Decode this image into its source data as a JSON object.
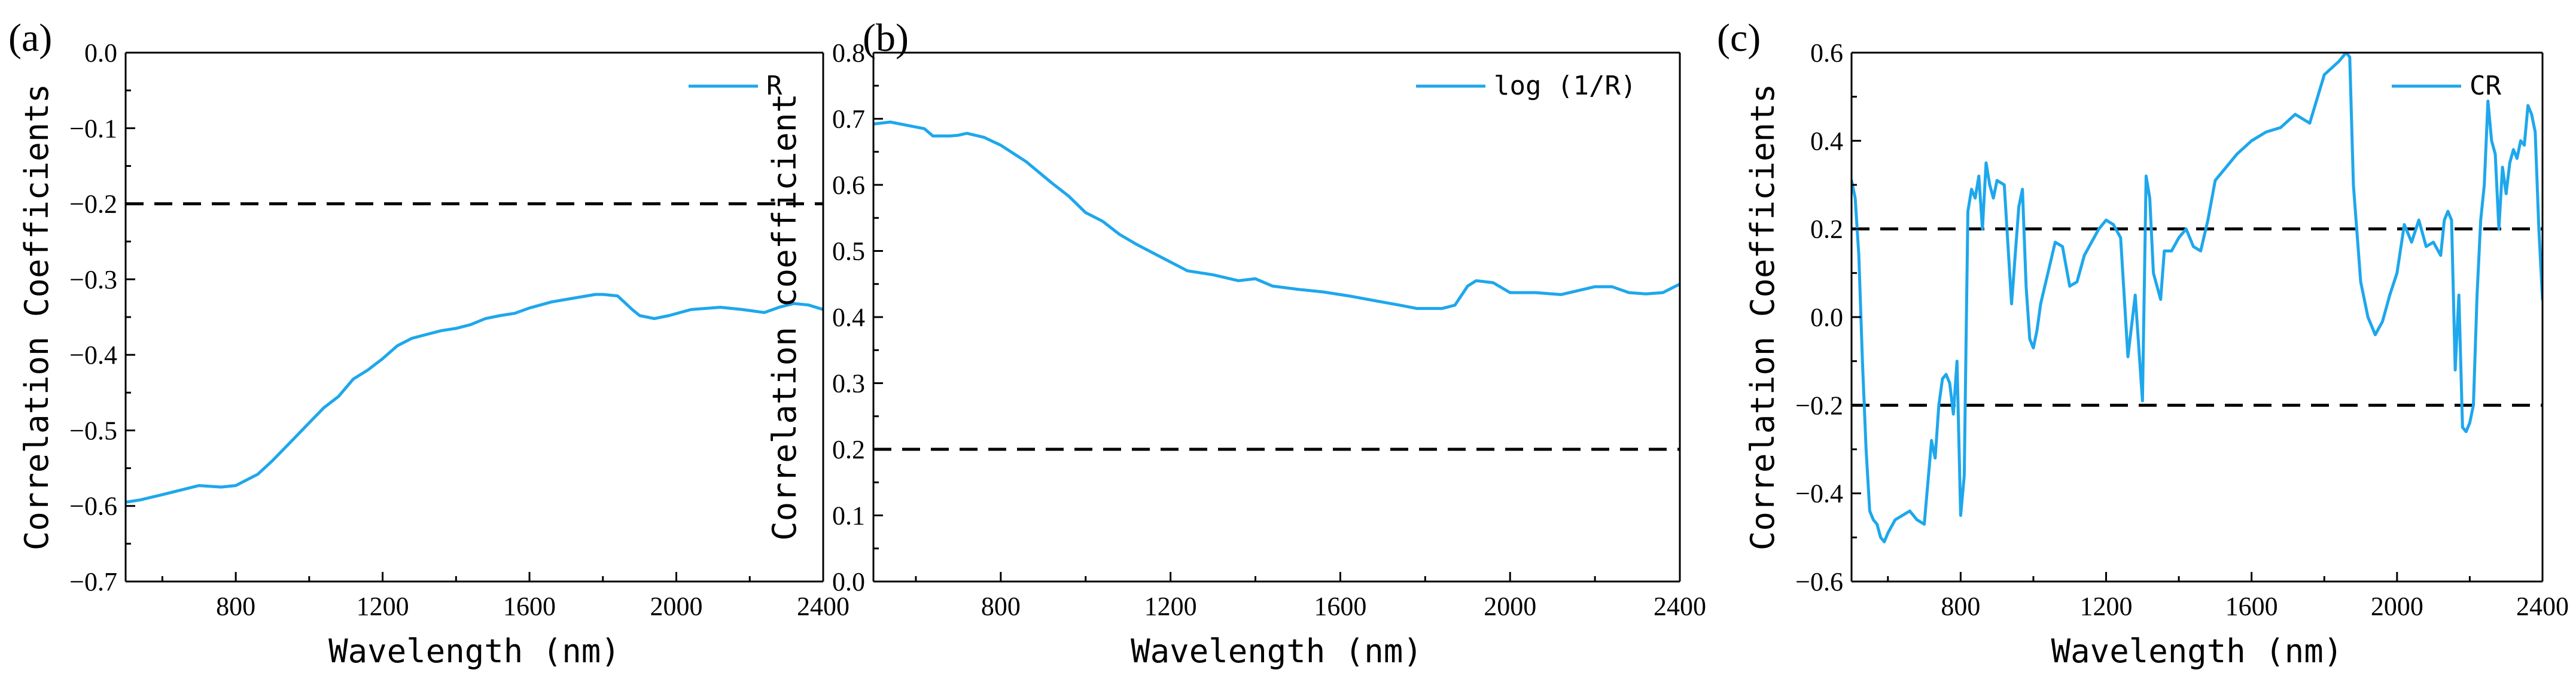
{
  "colors": {
    "series": "#1ea7ec",
    "axis": "#000000",
    "threshold": "#000000"
  },
  "chart_data": [
    {
      "id": "a",
      "type": "line",
      "panel_label": "(a)",
      "xlabel": "Wavelength (nm)",
      "ylabel": "Correlation Coefficients",
      "xlim": [
        500,
        2400
      ],
      "ylim": [
        -0.7,
        0.0
      ],
      "xticks": [
        800,
        1200,
        1600,
        2000,
        2400
      ],
      "yticks": [
        0.0,
        -0.1,
        -0.2,
        -0.3,
        -0.4,
        -0.5,
        -0.6,
        -0.7
      ],
      "ytick_labels": [
        "0.0",
        "−0.1",
        "−0.2",
        "−0.3",
        "−0.4",
        "−0.5",
        "−0.6",
        "−0.7"
      ],
      "thresholds": [
        -0.2
      ],
      "legend": {
        "label": "R",
        "position": "top-right"
      },
      "series": [
        {
          "name": "R",
          "x": [
            500,
            540,
            600,
            700,
            760,
            800,
            860,
            900,
            960,
            1000,
            1040,
            1080,
            1120,
            1160,
            1200,
            1240,
            1280,
            1320,
            1360,
            1400,
            1440,
            1480,
            1520,
            1560,
            1600,
            1660,
            1720,
            1780,
            1800,
            1840,
            1880,
            1900,
            1940,
            1980,
            2040,
            2120,
            2180,
            2240,
            2280,
            2320,
            2360,
            2400
          ],
          "y": [
            -0.595,
            -0.592,
            -0.585,
            -0.573,
            -0.575,
            -0.573,
            -0.558,
            -0.54,
            -0.51,
            -0.49,
            -0.47,
            -0.455,
            -0.432,
            -0.42,
            -0.405,
            -0.388,
            -0.378,
            -0.373,
            -0.368,
            -0.365,
            -0.36,
            -0.352,
            -0.348,
            -0.345,
            -0.338,
            -0.33,
            -0.325,
            -0.32,
            -0.32,
            -0.322,
            -0.34,
            -0.348,
            -0.352,
            -0.348,
            -0.34,
            -0.337,
            -0.34,
            -0.344,
            -0.337,
            -0.332,
            -0.334,
            -0.34
          ]
        }
      ]
    },
    {
      "id": "b",
      "type": "line",
      "panel_label": "(b)",
      "xlabel": "Wavelength (nm)",
      "ylabel": "Correlation coefficient",
      "xlim": [
        500,
        2400
      ],
      "ylim": [
        0.0,
        0.8
      ],
      "xticks": [
        800,
        1200,
        1600,
        2000,
        2400
      ],
      "yticks": [
        0.0,
        0.1,
        0.2,
        0.3,
        0.4,
        0.5,
        0.6,
        0.7,
        0.8
      ],
      "ytick_labels": [
        "0.0",
        "0.1",
        "0.2",
        "0.3",
        "0.4",
        "0.5",
        "0.6",
        "0.7",
        "0.8"
      ],
      "thresholds": [
        0.2
      ],
      "legend": {
        "label": "log (1/R)",
        "position": "top-right"
      },
      "series": [
        {
          "name": "log (1/R)",
          "x": [
            500,
            540,
            580,
            620,
            640,
            680,
            700,
            720,
            760,
            800,
            860,
            920,
            960,
            1000,
            1040,
            1080,
            1120,
            1180,
            1240,
            1300,
            1360,
            1400,
            1440,
            1500,
            1560,
            1620,
            1680,
            1740,
            1780,
            1840,
            1870,
            1900,
            1920,
            1960,
            2000,
            2060,
            2120,
            2160,
            2200,
            2240,
            2280,
            2320,
            2360,
            2400
          ],
          "y": [
            0.692,
            0.695,
            0.69,
            0.685,
            0.674,
            0.674,
            0.675,
            0.678,
            0.672,
            0.66,
            0.635,
            0.603,
            0.583,
            0.558,
            0.545,
            0.525,
            0.51,
            0.49,
            0.47,
            0.464,
            0.455,
            0.458,
            0.447,
            0.442,
            0.438,
            0.432,
            0.425,
            0.418,
            0.413,
            0.413,
            0.418,
            0.447,
            0.455,
            0.452,
            0.437,
            0.437,
            0.434,
            0.44,
            0.446,
            0.446,
            0.437,
            0.435,
            0.437,
            0.45
          ]
        }
      ]
    },
    {
      "id": "c",
      "type": "line",
      "panel_label": "(c)",
      "xlabel": "Wavelength (nm)",
      "ylabel": "Correlation Coefficients",
      "xlim": [
        500,
        2400
      ],
      "ylim": [
        -0.6,
        0.6
      ],
      "xticks": [
        800,
        1200,
        1600,
        2000,
        2400
      ],
      "yticks": [
        0.6,
        0.4,
        0.2,
        0.0,
        -0.2,
        -0.4,
        -0.6
      ],
      "ytick_labels": [
        "0.6",
        "0.4",
        "0.2",
        "0.0",
        "−0.2",
        "−0.4",
        "−0.6"
      ],
      "thresholds": [
        0.2,
        -0.2
      ],
      "legend": {
        "label": "CR",
        "position": "top-right"
      },
      "series": [
        {
          "name": "CR",
          "x": [
            500,
            510,
            520,
            530,
            540,
            550,
            560,
            570,
            580,
            590,
            600,
            620,
            640,
            660,
            680,
            700,
            720,
            730,
            740,
            750,
            760,
            770,
            780,
            790,
            800,
            810,
            815,
            820,
            830,
            840,
            850,
            860,
            870,
            880,
            890,
            900,
            920,
            940,
            960,
            970,
            980,
            990,
            1000,
            1010,
            1020,
            1040,
            1060,
            1080,
            1100,
            1120,
            1140,
            1160,
            1180,
            1200,
            1220,
            1240,
            1260,
            1280,
            1300,
            1310,
            1320,
            1330,
            1340,
            1350,
            1360,
            1380,
            1400,
            1420,
            1440,
            1460,
            1480,
            1500,
            1520,
            1540,
            1560,
            1600,
            1640,
            1680,
            1720,
            1760,
            1800,
            1840,
            1860,
            1870,
            1880,
            1900,
            1920,
            1940,
            1960,
            1980,
            2000,
            2020,
            2040,
            2060,
            2080,
            2100,
            2120,
            2130,
            2140,
            2150,
            2160,
            2170,
            2180,
            2190,
            2200,
            2210,
            2220,
            2230,
            2240,
            2250,
            2260,
            2270,
            2280,
            2290,
            2300,
            2310,
            2320,
            2330,
            2340,
            2350,
            2360,
            2370,
            2380,
            2390,
            2400
          ],
          "y": [
            0.31,
            0.27,
            0.14,
            -0.1,
            -0.3,
            -0.44,
            -0.46,
            -0.47,
            -0.5,
            -0.51,
            -0.49,
            -0.46,
            -0.45,
            -0.44,
            -0.46,
            -0.47,
            -0.28,
            -0.32,
            -0.2,
            -0.14,
            -0.13,
            -0.15,
            -0.22,
            -0.1,
            -0.45,
            -0.36,
            -0.05,
            0.24,
            0.29,
            0.27,
            0.32,
            0.2,
            0.35,
            0.3,
            0.27,
            0.31,
            0.3,
            0.03,
            0.25,
            0.29,
            0.07,
            -0.05,
            -0.07,
            -0.03,
            0.03,
            0.1,
            0.17,
            0.16,
            0.07,
            0.08,
            0.14,
            0.17,
            0.2,
            0.22,
            0.21,
            0.18,
            -0.09,
            0.05,
            -0.19,
            0.32,
            0.27,
            0.1,
            0.07,
            0.04,
            0.15,
            0.15,
            0.18,
            0.2,
            0.16,
            0.15,
            0.22,
            0.31,
            0.33,
            0.35,
            0.37,
            0.4,
            0.42,
            0.43,
            0.46,
            0.44,
            0.55,
            0.58,
            0.6,
            0.59,
            0.3,
            0.08,
            0.0,
            -0.04,
            -0.01,
            0.05,
            0.1,
            0.21,
            0.17,
            0.22,
            0.16,
            0.17,
            0.14,
            0.22,
            0.24,
            0.22,
            -0.12,
            0.05,
            -0.25,
            -0.26,
            -0.24,
            -0.2,
            0.05,
            0.22,
            0.3,
            0.49,
            0.4,
            0.37,
            0.2,
            0.34,
            0.28,
            0.35,
            0.38,
            0.36,
            0.4,
            0.39,
            0.48,
            0.46,
            0.42,
            0.2,
            0.04
          ]
        }
      ]
    }
  ]
}
